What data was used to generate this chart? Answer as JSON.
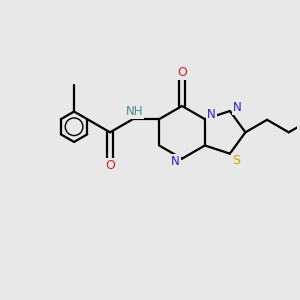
{
  "background_color": "#e8e8e8",
  "bond_color": "#000000",
  "n_color": "#2222cc",
  "o_color": "#cc2222",
  "s_color": "#ccaa00",
  "nh_color": "#4a9090",
  "line_width": 1.6,
  "figsize": [
    3.0,
    3.0
  ],
  "dpi": 100,
  "xlim": [
    0.0,
    9.5
  ],
  "ylim": [
    0.0,
    9.5
  ]
}
